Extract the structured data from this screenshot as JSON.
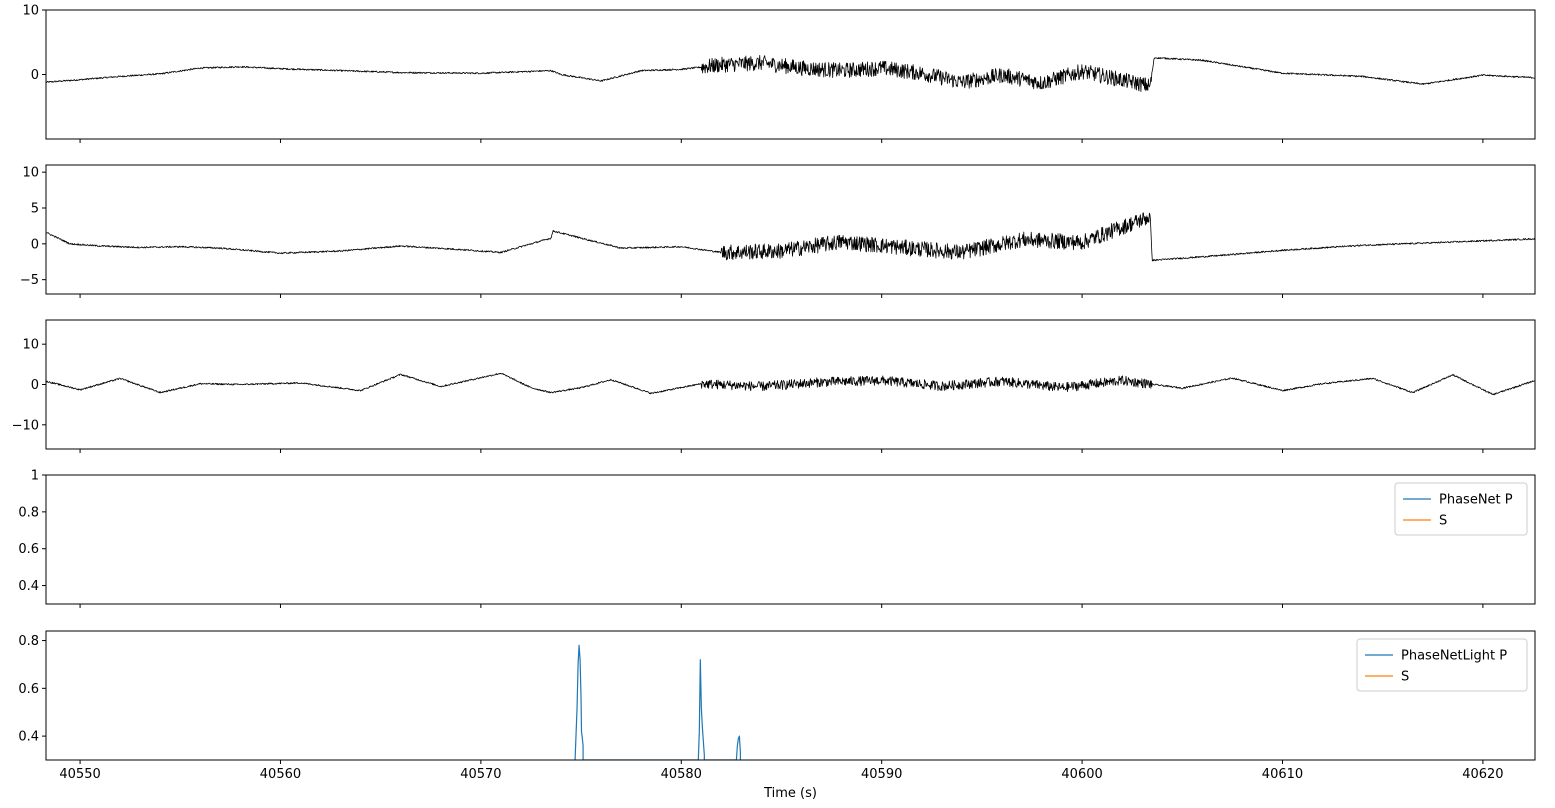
{
  "chart_data": [
    {
      "type": "line",
      "panel": 1,
      "ylim": [
        -10,
        10
      ],
      "yticks": [
        0,
        10
      ],
      "xlim": [
        40548.3,
        40622.6
      ],
      "series": [
        {
          "color": "#000000",
          "x": [
            40548.3,
            40550,
            40552,
            40554,
            40556,
            40558,
            40560,
            40563,
            40566,
            40570,
            40573.5,
            40574,
            40576,
            40578,
            40580,
            40582,
            40584,
            40586,
            40588,
            40590,
            40592,
            40594,
            40596,
            40598,
            40600,
            40603.4,
            40603.6,
            40606,
            40610,
            40614,
            40617,
            40620,
            40622.6
          ],
          "y": [
            -1.2,
            -0.8,
            -0.3,
            0.1,
            1.0,
            1.2,
            0.9,
            0.6,
            0.3,
            0.2,
            0.6,
            0.0,
            -1.0,
            0.6,
            0.8,
            1.5,
            1.8,
            1.0,
            0.6,
            1.0,
            0.2,
            -1.2,
            -0.1,
            -1.3,
            0.5,
            -1.8,
            2.6,
            2.2,
            0.2,
            -0.3,
            -1.5,
            -0.1,
            -0.5
          ],
          "noise": [
            [
              40581,
              40603.5,
              1.2
            ]
          ]
        }
      ]
    },
    {
      "type": "line",
      "panel": 2,
      "ylim": [
        -7,
        11
      ],
      "yticks": [
        -5,
        0,
        5,
        10
      ],
      "xlim": [
        40548.3,
        40622.6
      ],
      "series": [
        {
          "color": "#000000",
          "x": [
            40548.3,
            40549.5,
            40551,
            40553,
            40555,
            40557,
            40560,
            40563,
            40566,
            40569,
            40571,
            40573.5,
            40573.6,
            40575,
            40577,
            40580,
            40582,
            40585,
            40588,
            40591,
            40594,
            40597,
            40600,
            40603.4,
            40603.5,
            40607,
            40610,
            40614,
            40618,
            40622.6
          ],
          "y": [
            1.6,
            0.0,
            -0.3,
            -0.5,
            -0.4,
            -0.6,
            -1.3,
            -1.0,
            -0.3,
            -0.8,
            -1.2,
            0.8,
            1.8,
            0.8,
            -0.6,
            -0.4,
            -1.2,
            -1.0,
            0.3,
            -0.5,
            -1.2,
            0.6,
            0.2,
            3.8,
            -2.3,
            -1.6,
            -0.9,
            -0.2,
            0.2,
            0.7
          ],
          "noise": [
            [
              40582,
              40603.4,
              1.1
            ]
          ]
        }
      ]
    },
    {
      "type": "line",
      "panel": 3,
      "ylim": [
        -16,
        16
      ],
      "yticks": [
        -10,
        0,
        10
      ],
      "xlim": [
        40548.3,
        40622.6
      ],
      "series": [
        {
          "color": "#000000",
          "x": [
            40548.3,
            40550,
            40552,
            40554,
            40556,
            40558,
            40561,
            40564,
            40566,
            40568,
            40571,
            40572.5,
            40573.5,
            40575,
            40576.5,
            40578.5,
            40581,
            40584,
            40587,
            40590,
            40593,
            40596,
            40599,
            40602,
            40605,
            40607.5,
            40610,
            40612,
            40614.5,
            40616.5,
            40618.5,
            40620.5,
            40622.6
          ],
          "y": [
            0.8,
            -1.3,
            1.5,
            -2.0,
            0.2,
            0.0,
            0.4,
            -1.5,
            2.5,
            -0.5,
            2.8,
            -0.8,
            -2.0,
            -0.8,
            1.2,
            -2.2,
            0.2,
            -0.5,
            0.6,
            1.0,
            -0.4,
            0.8,
            -0.8,
            1.0,
            -0.9,
            1.6,
            -1.5,
            0.2,
            1.5,
            -2.0,
            2.4,
            -2.5,
            1.0
          ],
          "noise": [
            [
              40581,
              40603.5,
              1.2
            ]
          ]
        }
      ]
    },
    {
      "type": "line",
      "panel": 4,
      "ylim": [
        0.3,
        1.0
      ],
      "yticks": [
        0.4,
        0.6,
        0.8,
        1.0
      ],
      "xlim": [
        40548.3,
        40622.6
      ],
      "legend": "top-right",
      "series": [
        {
          "name": "PhaseNet P",
          "color": "#1f77b4",
          "x": [],
          "y": []
        },
        {
          "name": "S",
          "color": "#ff7f0e",
          "x": [],
          "y": []
        }
      ]
    },
    {
      "type": "line",
      "panel": 5,
      "ylim": [
        0.3,
        0.84
      ],
      "yticks": [
        0.4,
        0.6,
        0.8
      ],
      "xlim": [
        40548.3,
        40622.6
      ],
      "xticks": [
        40550,
        40560,
        40570,
        40580,
        40590,
        40600,
        40610,
        40620
      ],
      "xlabel": "Time (s)",
      "legend": "top-right",
      "series": [
        {
          "name": "PhaseNetLight P",
          "color": "#1f77b4",
          "x": [
            40574.7,
            40574.8,
            40574.85,
            40574.9,
            40574.95,
            40575.0,
            40575.02,
            40575.05,
            40575.1,
            40575.1,
            40580.85,
            40580.9,
            40580.95,
            40581.0,
            40581.05,
            40581.1,
            40581.15,
            40581.15,
            40582.75,
            40582.8,
            40582.85,
            40582.9,
            40582.95,
            40582.95
          ],
          "y": [
            0.3,
            0.52,
            0.7,
            0.78,
            0.72,
            0.55,
            0.42,
            0.4,
            0.36,
            0.3,
            0.3,
            0.42,
            0.72,
            0.52,
            0.44,
            0.38,
            0.32,
            0.3,
            0.3,
            0.36,
            0.39,
            0.4,
            0.33,
            0.3
          ]
        },
        {
          "name": "S",
          "color": "#ff7f0e",
          "x": [],
          "y": []
        }
      ]
    }
  ]
}
